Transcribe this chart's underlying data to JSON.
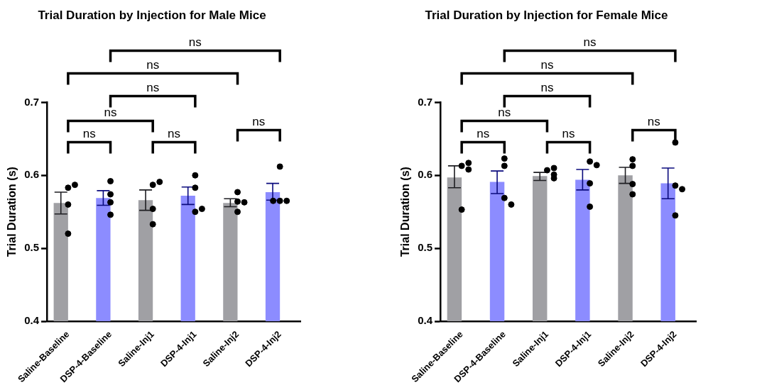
{
  "chart_data": [
    {
      "type": "bar",
      "title": "Trial Duration by Injection for Male Mice",
      "ylabel": "Trial Duration (s)",
      "categories": [
        "Saline-Baseline",
        "DSP-4-Baseline",
        "Saline-Inj1",
        "DSP-4-Inj1",
        "Saline-Inj2",
        "DSP-4-Inj2"
      ],
      "ylim": [
        0.4,
        0.7
      ],
      "yticks": [
        0.4,
        0.5,
        0.6,
        0.7
      ],
      "grid": false,
      "legend": false,
      "marker": "circle",
      "series": [
        {
          "values": [
            0.562,
            0.569,
            0.566,
            0.572,
            0.562,
            0.577
          ],
          "colors": [
            "#a0a0a4",
            "#8c8cff",
            "#a0a0a4",
            "#8c8cff",
            "#a0a0a4",
            "#8c8cff"
          ],
          "errors": [
            [
              0.547,
              0.577
            ],
            [
              0.559,
              0.579
            ],
            [
              0.552,
              0.58
            ],
            [
              0.56,
              0.584
            ],
            [
              0.557,
              0.568
            ],
            [
              0.566,
              0.589
            ]
          ]
        },
        {
          "type": "scatter",
          "color": "#000000",
          "x": [
            "Saline-Baseline",
            "Saline-Baseline",
            "Saline-Baseline",
            "Saline-Baseline",
            "DSP-4-Baseline",
            "DSP-4-Baseline",
            "DSP-4-Baseline",
            "DSP-4-Baseline",
            "Saline-Inj1",
            "Saline-Inj1",
            "Saline-Inj1",
            "Saline-Inj1",
            "DSP-4-Inj1",
            "DSP-4-Inj1",
            "DSP-4-Inj1",
            "DSP-4-Inj1",
            "Saline-Inj2",
            "Saline-Inj2",
            "Saline-Inj2",
            "Saline-Inj2",
            "DSP-4-Inj2",
            "DSP-4-Inj2",
            "DSP-4-Inj2",
            "DSP-4-Inj2"
          ],
          "values": [
            0.583,
            0.587,
            0.56,
            0.52,
            0.592,
            0.574,
            0.563,
            0.546,
            0.587,
            0.591,
            0.554,
            0.533,
            0.6,
            0.583,
            0.55,
            0.554,
            0.577,
            0.564,
            0.563,
            0.55,
            0.612,
            0.565,
            0.565,
            0.565
          ]
        }
      ],
      "annotations": [
        "ns",
        "ns",
        "ns",
        "ns",
        "ns",
        "ns",
        "ns"
      ]
    },
    {
      "type": "bar",
      "title": "Trial Duration by Injection for Female Mice",
      "ylabel": "Trial Duration (s)",
      "categories": [
        "Saline-Baseline",
        "DSP-4-Baseline",
        "Saline-Inj1",
        "DSP-4-Inj1",
        "Saline-Inj2",
        "DSP-4-Inj2"
      ],
      "ylim": [
        0.4,
        0.7
      ],
      "yticks": [
        0.4,
        0.5,
        0.6,
        0.7
      ],
      "grid": false,
      "legend": false,
      "marker": "circle",
      "series": [
        {
          "values": [
            0.597,
            0.591,
            0.599,
            0.594,
            0.6,
            0.589
          ],
          "colors": [
            "#a0a0a4",
            "#8c8cff",
            "#a0a0a4",
            "#8c8cff",
            "#a0a0a4",
            "#8c8cff"
          ],
          "errors": [
            [
              0.583,
              0.613
            ],
            [
              0.575,
              0.606
            ],
            [
              0.593,
              0.604
            ],
            [
              0.58,
              0.608
            ],
            [
              0.589,
              0.611
            ],
            [
              0.568,
              0.61
            ]
          ]
        },
        {
          "type": "scatter",
          "color": "#000000",
          "x": [
            "Saline-Baseline",
            "Saline-Baseline",
            "Saline-Baseline",
            "Saline-Baseline",
            "DSP-4-Baseline",
            "DSP-4-Baseline",
            "DSP-4-Baseline",
            "DSP-4-Baseline",
            "Saline-Inj1",
            "Saline-Inj1",
            "Saline-Inj1",
            "Saline-Inj1",
            "DSP-4-Inj1",
            "DSP-4-Inj1",
            "DSP-4-Inj1",
            "DSP-4-Inj1",
            "Saline-Inj2",
            "Saline-Inj2",
            "Saline-Inj2",
            "Saline-Inj2",
            "DSP-4-Inj2",
            "DSP-4-Inj2",
            "DSP-4-Inj2",
            "DSP-4-Inj2"
          ],
          "values": [
            0.613,
            0.617,
            0.608,
            0.553,
            0.623,
            0.613,
            0.569,
            0.56,
            0.607,
            0.61,
            0.601,
            0.596,
            0.619,
            0.614,
            0.589,
            0.557,
            0.622,
            0.613,
            0.588,
            0.574,
            0.645,
            0.586,
            0.581,
            0.545
          ]
        }
      ],
      "annotations": [
        "ns",
        "ns",
        "ns",
        "ns",
        "ns",
        "ns",
        "ns"
      ]
    }
  ]
}
